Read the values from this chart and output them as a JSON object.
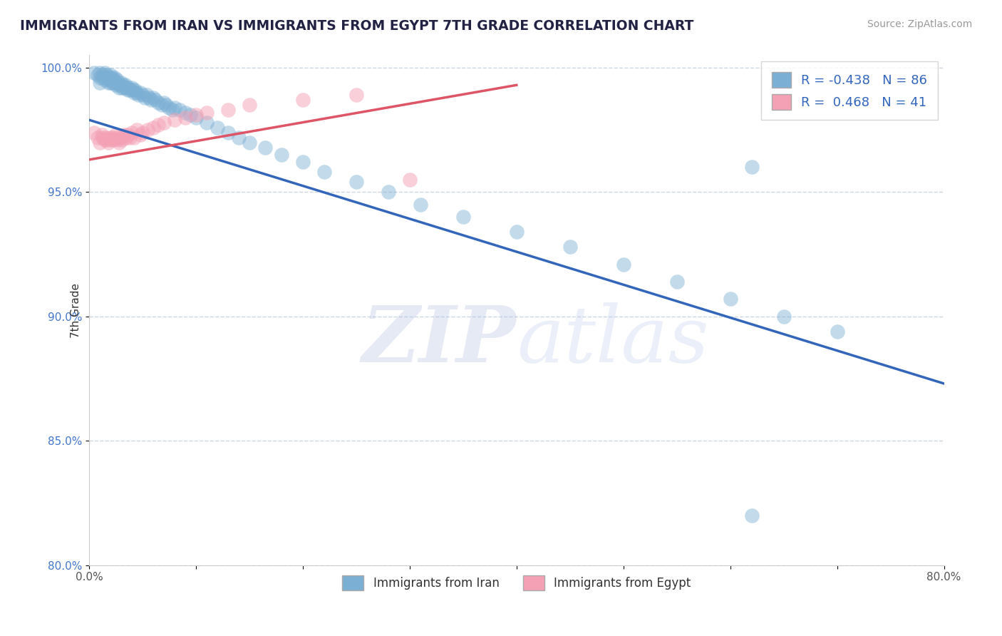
{
  "title": "IMMIGRANTS FROM IRAN VS IMMIGRANTS FROM EGYPT 7TH GRADE CORRELATION CHART",
  "source": "Source: ZipAtlas.com",
  "ylabel": "7th Grade",
  "legend_label1": "Immigrants from Iran",
  "legend_label2": "Immigrants from Egypt",
  "R1": -0.438,
  "N1": 86,
  "R2": 0.468,
  "N2": 41,
  "xlim": [
    0.0,
    0.8
  ],
  "ylim": [
    0.8,
    1.005
  ],
  "xticks": [
    0.0,
    0.1,
    0.2,
    0.3,
    0.4,
    0.5,
    0.6,
    0.7,
    0.8
  ],
  "xtick_labels": [
    "0.0%",
    "",
    "",
    "",
    "",
    "",
    "",
    "",
    "80.0%"
  ],
  "yticks": [
    0.8,
    0.85,
    0.9,
    0.95,
    1.0
  ],
  "ytick_labels": [
    "80.0%",
    "85.0%",
    "90.0%",
    "95.0%",
    "100.0%"
  ],
  "color_iran": "#7BAFD4",
  "color_egypt": "#F4A0B5",
  "color_trendline_iran": "#3366BB",
  "color_trendline_egypt": "#DD5566",
  "background_color": "#FFFFFF",
  "trendline_iran_x0": 0.0,
  "trendline_iran_y0": 0.979,
  "trendline_iran_x1": 0.8,
  "trendline_iran_y1": 0.873,
  "trendline_egypt_x0": 0.0,
  "trendline_egypt_y0": 0.963,
  "trendline_egypt_x1": 0.4,
  "trendline_egypt_y1": 0.993,
  "iran_x": [
    0.005,
    0.008,
    0.01,
    0.01,
    0.01,
    0.012,
    0.013,
    0.014,
    0.015,
    0.015,
    0.016,
    0.017,
    0.018,
    0.018,
    0.019,
    0.02,
    0.02,
    0.02,
    0.021,
    0.022,
    0.022,
    0.023,
    0.024,
    0.025,
    0.025,
    0.026,
    0.027,
    0.028,
    0.028,
    0.03,
    0.03,
    0.031,
    0.032,
    0.033,
    0.034,
    0.035,
    0.036,
    0.037,
    0.038,
    0.04,
    0.041,
    0.042,
    0.043,
    0.045,
    0.046,
    0.048,
    0.05,
    0.052,
    0.054,
    0.056,
    0.058,
    0.06,
    0.062,
    0.065,
    0.068,
    0.07,
    0.072,
    0.075,
    0.078,
    0.08,
    0.085,
    0.09,
    0.095,
    0.1,
    0.11,
    0.12,
    0.13,
    0.14,
    0.15,
    0.165,
    0.18,
    0.2,
    0.22,
    0.25,
    0.28,
    0.31,
    0.35,
    0.4,
    0.45,
    0.5,
    0.55,
    0.6,
    0.62,
    0.65,
    0.7,
    0.62
  ],
  "iran_y": [
    0.998,
    0.997,
    0.998,
    0.996,
    0.994,
    0.997,
    0.996,
    0.997,
    0.998,
    0.995,
    0.996,
    0.997,
    0.996,
    0.994,
    0.995,
    0.997,
    0.996,
    0.994,
    0.995,
    0.996,
    0.994,
    0.995,
    0.996,
    0.994,
    0.993,
    0.995,
    0.994,
    0.993,
    0.992,
    0.994,
    0.993,
    0.992,
    0.993,
    0.992,
    0.993,
    0.992,
    0.991,
    0.992,
    0.991,
    0.992,
    0.991,
    0.99,
    0.991,
    0.99,
    0.989,
    0.99,
    0.989,
    0.988,
    0.989,
    0.988,
    0.987,
    0.988,
    0.987,
    0.986,
    0.985,
    0.986,
    0.985,
    0.984,
    0.983,
    0.984,
    0.983,
    0.982,
    0.981,
    0.98,
    0.978,
    0.976,
    0.974,
    0.972,
    0.97,
    0.968,
    0.965,
    0.962,
    0.958,
    0.954,
    0.95,
    0.945,
    0.94,
    0.934,
    0.928,
    0.921,
    0.914,
    0.907,
    0.96,
    0.9,
    0.894,
    0.82
  ],
  "egypt_x": [
    0.005,
    0.008,
    0.01,
    0.012,
    0.013,
    0.015,
    0.016,
    0.017,
    0.018,
    0.02,
    0.021,
    0.022,
    0.023,
    0.025,
    0.026,
    0.027,
    0.028,
    0.03,
    0.031,
    0.033,
    0.035,
    0.036,
    0.038,
    0.04,
    0.042,
    0.045,
    0.048,
    0.05,
    0.055,
    0.06,
    0.065,
    0.07,
    0.08,
    0.09,
    0.1,
    0.11,
    0.13,
    0.15,
    0.2,
    0.25,
    0.3
  ],
  "egypt_y": [
    0.974,
    0.972,
    0.97,
    0.973,
    0.972,
    0.971,
    0.972,
    0.971,
    0.97,
    0.972,
    0.971,
    0.972,
    0.971,
    0.973,
    0.972,
    0.971,
    0.97,
    0.972,
    0.971,
    0.973,
    0.972,
    0.973,
    0.972,
    0.974,
    0.972,
    0.975,
    0.973,
    0.974,
    0.975,
    0.976,
    0.977,
    0.978,
    0.979,
    0.98,
    0.981,
    0.982,
    0.983,
    0.985,
    0.987,
    0.989,
    0.955
  ]
}
